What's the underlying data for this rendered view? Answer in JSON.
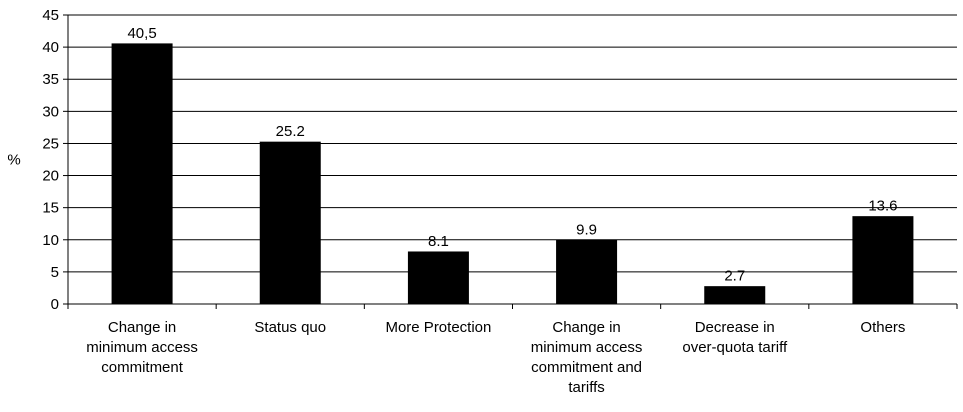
{
  "chart_data": {
    "type": "bar",
    "title": "",
    "xlabel": "",
    "ylabel": "%",
    "ylim": [
      0,
      45
    ],
    "yticks": [
      0,
      5,
      10,
      15,
      20,
      25,
      30,
      35,
      40,
      45
    ],
    "grid": true,
    "legend": "none",
    "categories": [
      [
        "Change in",
        "minimum access",
        "commitment"
      ],
      [
        "Status quo"
      ],
      [
        "More Protection"
      ],
      [
        "Change in",
        "minimum access",
        "commitment and",
        "tariffs"
      ],
      [
        "Decrease in",
        "over-quota tariff"
      ],
      [
        "Others"
      ]
    ],
    "values": [
      40.5,
      25.2,
      8.1,
      9.9,
      2.7,
      13.6
    ],
    "data_labels": [
      "40,5",
      "25.2",
      "8.1",
      "9.9",
      "2.7",
      "13.6"
    ],
    "colors": {
      "bar": "#000000",
      "grid": "#000000",
      "axis": "#000000"
    }
  }
}
